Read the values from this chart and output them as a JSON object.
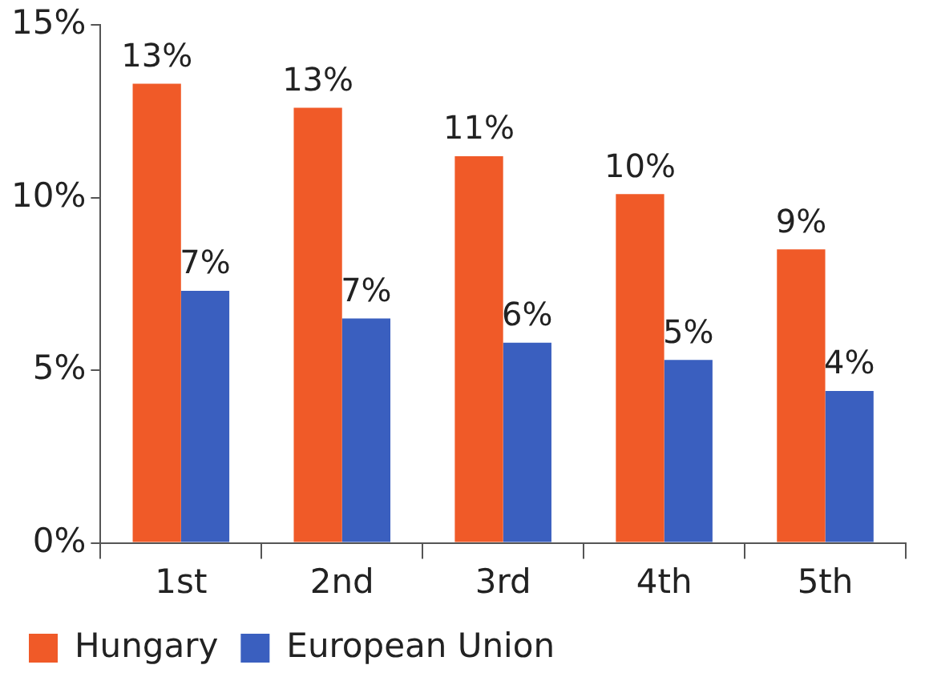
{
  "chart_data": {
    "type": "bar",
    "categories": [
      "1st",
      "2nd",
      "3rd",
      "4th",
      "5th"
    ],
    "series": [
      {
        "name": "Hungary",
        "color": "#f05a28",
        "values": [
          13.3,
          12.6,
          11.2,
          10.1,
          8.5
        ],
        "value_labels": [
          "13%",
          "13%",
          "11%",
          "10%",
          "9%"
        ]
      },
      {
        "name": "European Union",
        "color": "#3a5fbf",
        "values": [
          7.3,
          6.5,
          5.8,
          5.3,
          4.4
        ],
        "value_labels": [
          "7%",
          "7%",
          "6%",
          "5%",
          "4%"
        ]
      }
    ],
    "ylim": [
      0,
      15
    ],
    "yticks": [
      {
        "value": 0,
        "label": "0%"
      },
      {
        "value": 5,
        "label": "5%"
      },
      {
        "value": 10,
        "label": "10%"
      },
      {
        "value": 15,
        "label": "15%"
      }
    ],
    "grid": false,
    "legend": "bottom left"
  }
}
